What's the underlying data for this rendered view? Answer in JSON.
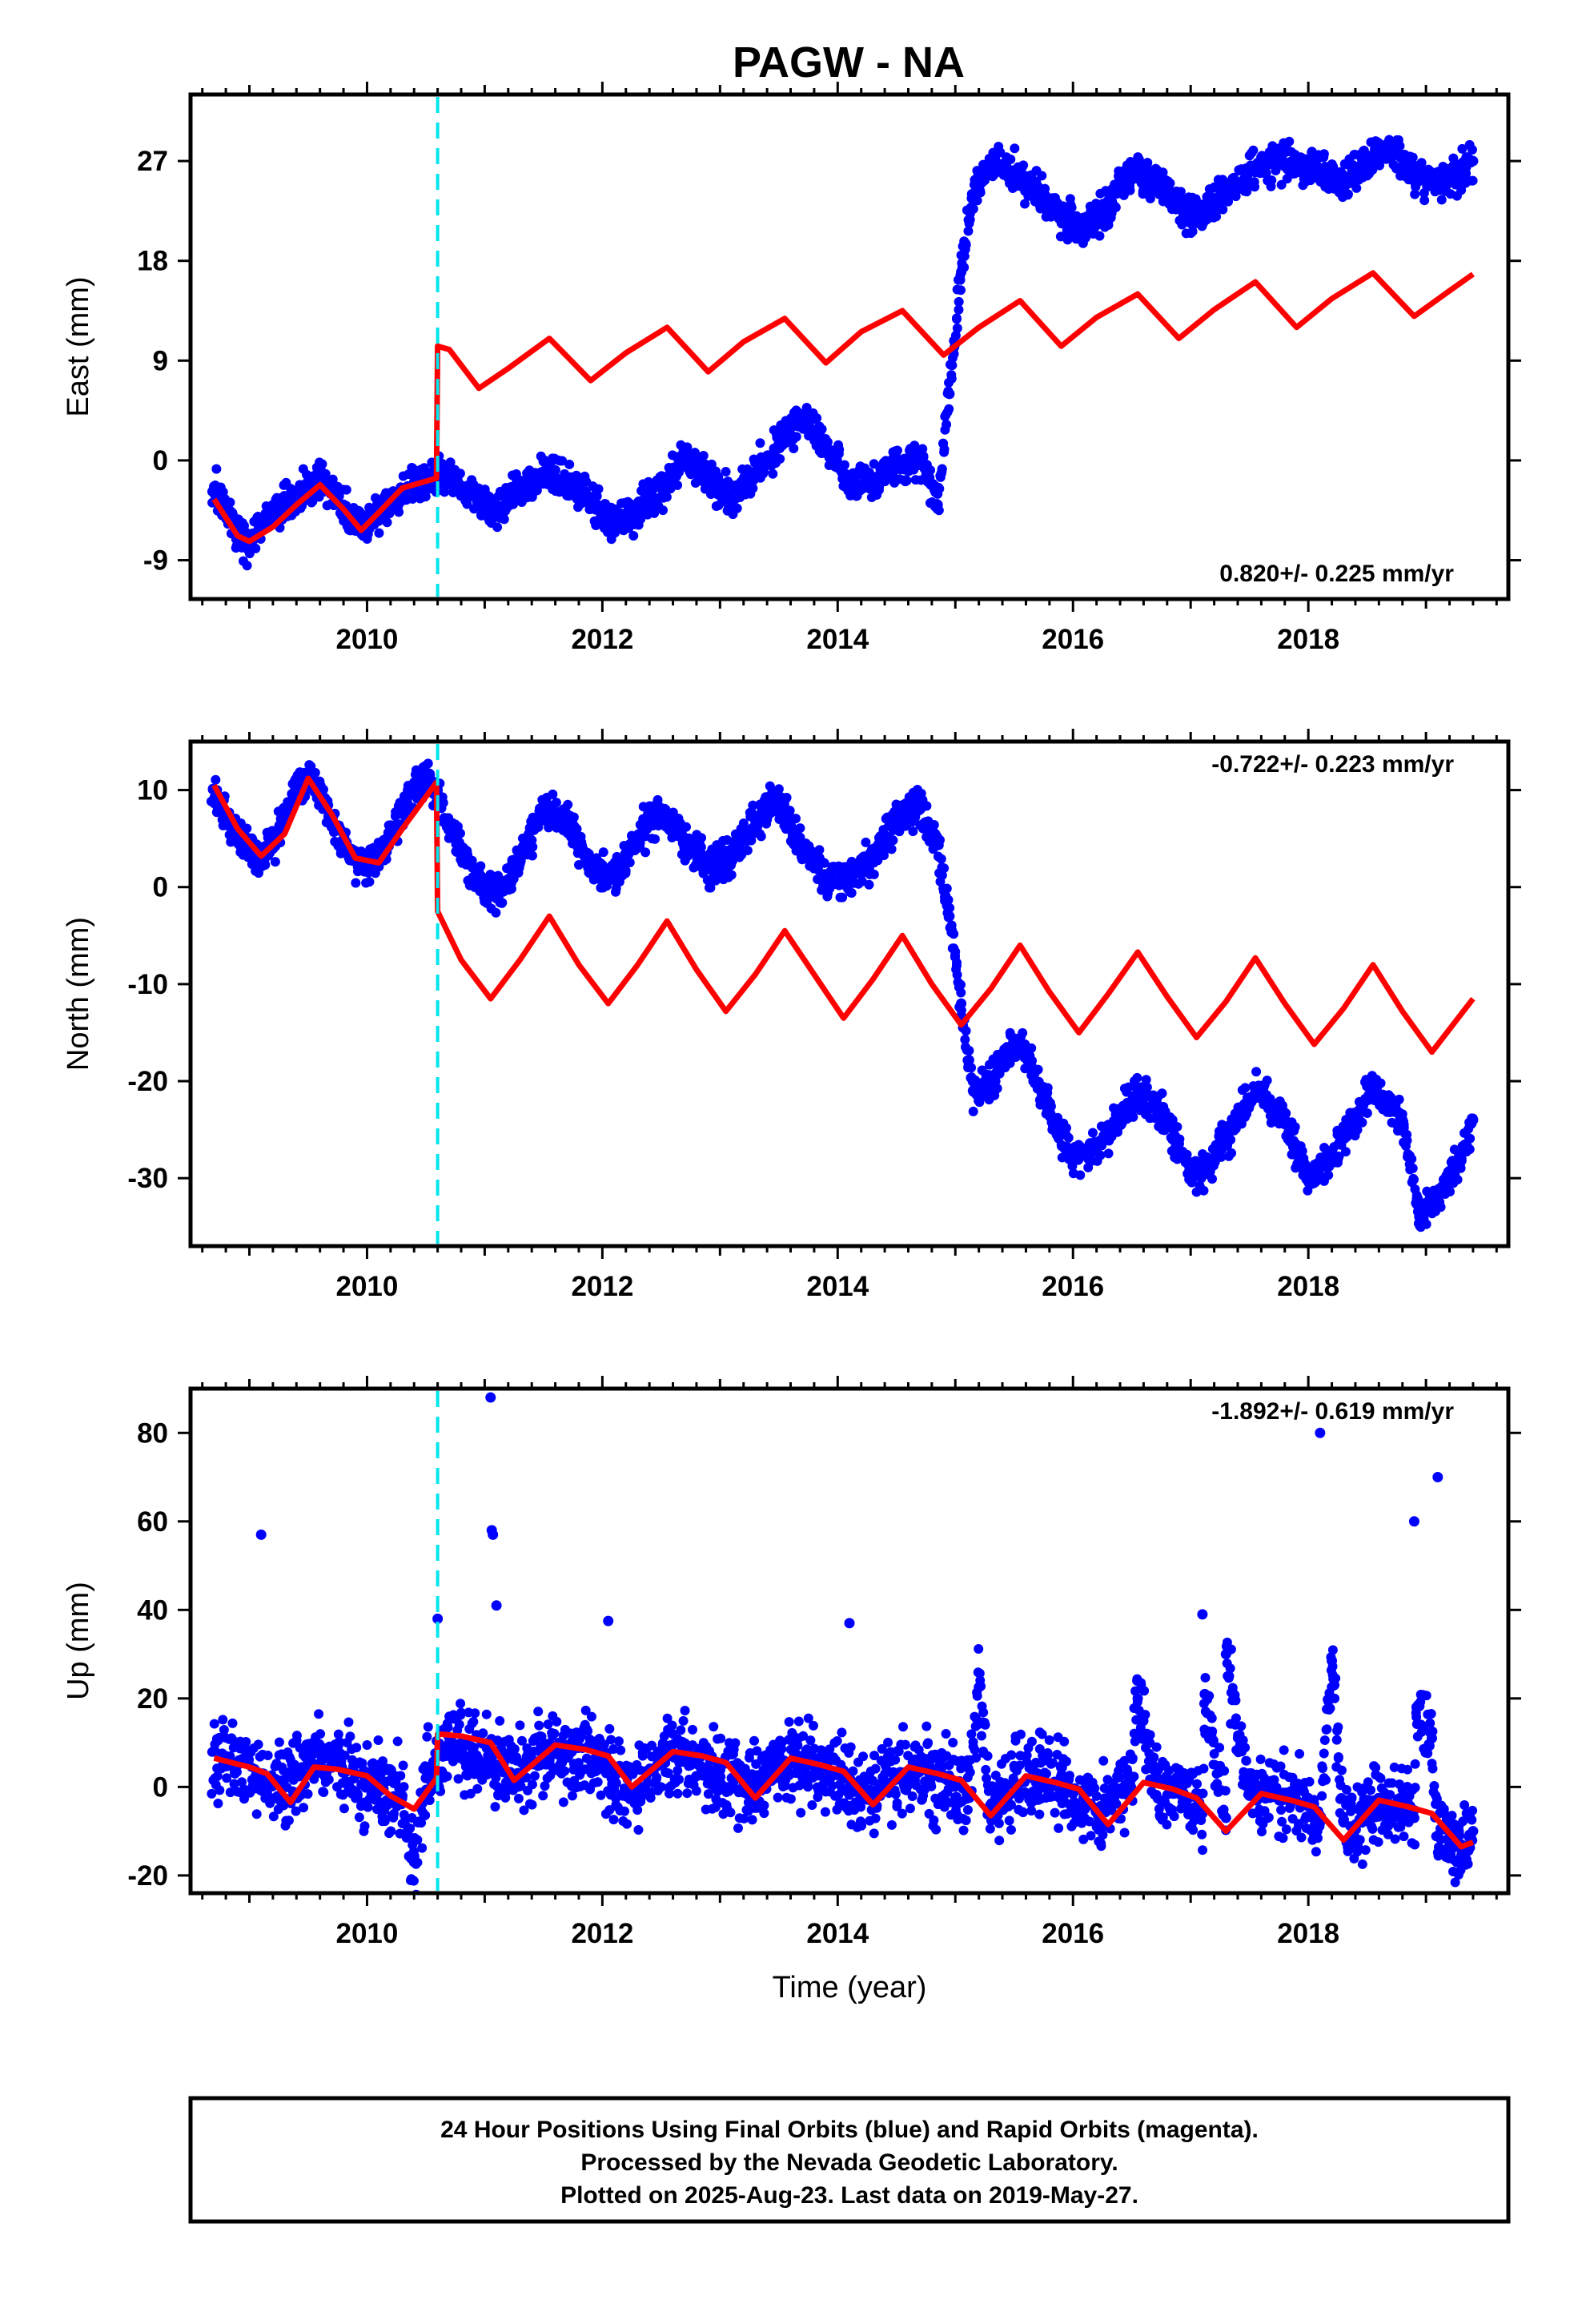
{
  "title": "PAGW - NA",
  "chart_data": [
    {
      "type": "scatter",
      "ylabel": "East (mm)",
      "xlabel": "",
      "xlim": [
        2008.5,
        2019.7
      ],
      "ylim": [
        -12.5,
        33
      ],
      "xticks": [
        2010,
        2012,
        2014,
        2016,
        2018
      ],
      "yticks": [
        -9,
        0,
        9,
        18,
        27
      ],
      "rate_text": "0.820+/- 0.225 mm/yr",
      "rate_position": "bottom-right",
      "step_epoch": 2010.6,
      "series": [
        {
          "role": "observations",
          "color": "#0000ff",
          "x": [
            2008.7,
            2008.8,
            2008.9,
            2009.0,
            2009.1,
            2009.2,
            2009.3,
            2009.4,
            2009.5,
            2009.6,
            2009.7,
            2009.8,
            2009.9,
            2010.0,
            2010.1,
            2010.2,
            2010.3,
            2010.4,
            2010.5,
            2010.6,
            2010.7,
            2010.9,
            2011.1,
            2011.3,
            2011.5,
            2011.7,
            2011.9,
            2012.1,
            2012.3,
            2012.5,
            2012.7,
            2012.9,
            2013.1,
            2013.3,
            2013.5,
            2013.7,
            2013.9,
            2014.1,
            2014.3,
            2014.5,
            2014.7,
            2014.85,
            2014.95,
            2015.05,
            2015.15,
            2015.3,
            2015.5,
            2015.7,
            2015.9,
            2016.1,
            2016.3,
            2016.5,
            2016.7,
            2016.9,
            2017.1,
            2017.3,
            2017.5,
            2017.7,
            2017.9,
            2018.1,
            2018.3,
            2018.5,
            2018.7,
            2018.9,
            2019.1,
            2019.3,
            2019.4
          ],
          "y": [
            -2.5,
            -4.5,
            -6.5,
            -7.5,
            -5.5,
            -5,
            -4,
            -3.5,
            -2.5,
            -1.5,
            -2.5,
            -4,
            -5.5,
            -6,
            -4.5,
            -3.5,
            -3,
            -2.5,
            -2,
            -1,
            -1.5,
            -3,
            -4.5,
            -2.5,
            -1,
            -2,
            -3.5,
            -6,
            -4.5,
            -2.5,
            0.5,
            -1.5,
            -3.5,
            -1,
            1.5,
            4,
            1,
            -2,
            -1.5,
            -0.5,
            0.5,
            -4,
            6,
            17,
            24,
            27,
            26,
            24,
            22,
            21,
            23,
            26,
            25,
            23,
            22,
            24,
            26,
            27,
            27,
            26,
            25,
            27,
            28,
            26,
            25,
            26,
            27
          ]
        },
        {
          "role": "model",
          "color": "#ff0000",
          "x": [
            2008.7,
            2008.9,
            2009.0,
            2009.2,
            2009.4,
            2009.6,
            2009.8,
            2009.95,
            2010.1,
            2010.3,
            2010.59,
            2010.6,
            2010.7,
            2010.95,
            2011.2,
            2011.55,
            2011.9,
            2012.2,
            2012.55,
            2012.9,
            2013.2,
            2013.55,
            2013.9,
            2014.2,
            2014.55,
            2014.9,
            2015.2,
            2015.55,
            2015.9,
            2016.2,
            2016.55,
            2016.9,
            2017.2,
            2017.55,
            2017.9,
            2018.2,
            2018.55,
            2018.9,
            2019.2,
            2019.4
          ],
          "y": [
            -3.5,
            -6.8,
            -7.3,
            -6,
            -4,
            -2.2,
            -4.4,
            -6.3,
            -4.7,
            -2.5,
            -1.6,
            10.3,
            10,
            6.5,
            8.3,
            11,
            7.2,
            9.7,
            12,
            8,
            10.7,
            12.8,
            8.8,
            11.6,
            13.5,
            9.5,
            12,
            14.4,
            10.3,
            12.9,
            15,
            11,
            13.6,
            16.1,
            12,
            14.6,
            16.9,
            13,
            15.3,
            16.8
          ]
        }
      ]
    },
    {
      "type": "scatter",
      "ylabel": "North (mm)",
      "xlabel": "",
      "xlim": [
        2008.5,
        2019.7
      ],
      "ylim": [
        -37,
        15
      ],
      "xticks": [
        2010,
        2012,
        2014,
        2016,
        2018
      ],
      "yticks": [
        -30,
        -20,
        -10,
        0,
        10
      ],
      "rate_text": "-0.722+/- 0.223 mm/yr",
      "rate_position": "top-right",
      "step_epoch": 2010.6,
      "series": [
        {
          "role": "observations",
          "color": "#0000ff",
          "x": [
            2008.7,
            2008.8,
            2008.9,
            2009.0,
            2009.1,
            2009.2,
            2009.3,
            2009.4,
            2009.5,
            2009.6,
            2009.7,
            2009.8,
            2009.9,
            2010.0,
            2010.1,
            2010.2,
            2010.3,
            2010.4,
            2010.5,
            2010.6,
            2010.7,
            2010.9,
            2011.1,
            2011.3,
            2011.5,
            2011.7,
            2011.9,
            2012.1,
            2012.3,
            2012.5,
            2012.7,
            2012.9,
            2013.1,
            2013.3,
            2013.5,
            2013.7,
            2013.9,
            2014.1,
            2014.3,
            2014.5,
            2014.7,
            2014.85,
            2014.95,
            2015.05,
            2015.15,
            2015.3,
            2015.55,
            2015.8,
            2016.0,
            2016.2,
            2016.55,
            2016.8,
            2017.0,
            2017.2,
            2017.55,
            2017.8,
            2018.0,
            2018.2,
            2018.55,
            2018.8,
            2018.95,
            2019.1,
            2019.3,
            2019.4
          ],
          "y": [
            10,
            7.5,
            5,
            3.5,
            3,
            4.5,
            7,
            10,
            11.5,
            10,
            7,
            4.5,
            3,
            2.5,
            3.5,
            5.5,
            8,
            10.5,
            11.5,
            10,
            6,
            1,
            -1,
            3,
            8,
            7,
            2,
            1,
            5,
            8,
            5,
            2,
            3,
            7,
            9,
            4,
            1,
            1,
            3,
            7,
            8,
            5,
            -3,
            -12,
            -21,
            -20,
            -16,
            -23,
            -28,
            -27,
            -21,
            -24,
            -30,
            -28,
            -21,
            -24,
            -30,
            -28,
            -21,
            -24,
            -34,
            -32,
            -28,
            -24
          ]
        },
        {
          "role": "model",
          "color": "#ff0000",
          "x": [
            2008.7,
            2008.9,
            2009.1,
            2009.3,
            2009.5,
            2009.7,
            2009.9,
            2010.1,
            2010.3,
            2010.59,
            2010.6,
            2010.8,
            2011.05,
            2011.3,
            2011.55,
            2011.8,
            2012.05,
            2012.3,
            2012.55,
            2012.8,
            2013.05,
            2013.3,
            2013.55,
            2013.8,
            2014.05,
            2014.3,
            2014.55,
            2014.8,
            2015.05,
            2015.3,
            2015.55,
            2015.8,
            2016.05,
            2016.3,
            2016.55,
            2016.8,
            2017.05,
            2017.3,
            2017.55,
            2017.8,
            2018.05,
            2018.3,
            2018.55,
            2018.8,
            2019.05,
            2019.4
          ],
          "y": [
            10.5,
            6,
            3.2,
            5.5,
            11.2,
            7.5,
            3,
            2.5,
            6,
            10.8,
            -2.5,
            -7.5,
            -11.5,
            -7.5,
            -3,
            -8,
            -12,
            -8,
            -3.5,
            -8.5,
            -12.8,
            -9,
            -4.5,
            -9,
            -13.5,
            -9.5,
            -5,
            -10,
            -14.2,
            -10.5,
            -6,
            -10.8,
            -15,
            -11,
            -6.7,
            -11.3,
            -15.5,
            -11.8,
            -7.3,
            -12,
            -16.2,
            -12.5,
            -8,
            -12.8,
            -17,
            -11.5
          ]
        }
      ]
    },
    {
      "type": "scatter",
      "ylabel": "Up (mm)",
      "xlabel": "Time (year)",
      "xlim": [
        2008.5,
        2019.7
      ],
      "ylim": [
        -24,
        90
      ],
      "xticks": [
        2010,
        2012,
        2014,
        2016,
        2018
      ],
      "yticks": [
        -20,
        0,
        20,
        40,
        60,
        80
      ],
      "rate_text": "-1.892+/- 0.619 mm/yr",
      "rate_position": "top-right",
      "step_epoch": 2010.6,
      "series": [
        {
          "role": "observations",
          "color": "#0000ff",
          "x": [
            2008.7,
            2008.9,
            2009.1,
            2009.3,
            2009.5,
            2009.7,
            2009.9,
            2010.1,
            2010.3,
            2010.5,
            2010.7,
            2010.9,
            2011.1,
            2011.3,
            2011.5,
            2011.7,
            2011.9,
            2012.1,
            2012.3,
            2012.5,
            2012.7,
            2012.9,
            2013.1,
            2013.3,
            2013.5,
            2013.7,
            2013.9,
            2014.1,
            2014.3,
            2014.5,
            2014.7,
            2014.9,
            2015.1,
            2015.3,
            2015.5,
            2015.7,
            2015.9,
            2016.1,
            2016.3,
            2016.5,
            2016.7,
            2016.9,
            2017.1,
            2017.3,
            2017.5,
            2017.7,
            2017.9,
            2018.1,
            2018.3,
            2018.5,
            2018.7,
            2018.9,
            2019.1,
            2019.3,
            2019.4,
            2009.1,
            2010.6,
            2011.05,
            2011.06,
            2011.07,
            2011.1,
            2012.05,
            2014.1,
            2015.2,
            2016.55,
            2017.1,
            2017.12,
            2017.3,
            2018.1,
            2018.2,
            2018.9,
            2018.92,
            2019.1,
            2019.05,
            2010.4
          ],
          "y": [
            8,
            5,
            2,
            0,
            5,
            6,
            3,
            0,
            -2,
            2,
            10,
            8,
            5,
            3,
            8,
            7,
            6,
            2,
            0,
            6,
            7,
            4,
            2,
            -1,
            5,
            6,
            3,
            0,
            -2,
            3,
            4,
            2,
            -2,
            -4,
            1,
            3,
            0,
            -5,
            -4,
            2,
            1,
            0,
            -6,
            -7,
            -2,
            0,
            -3,
            -8,
            -8,
            -5,
            -4,
            -7,
            -11,
            -13,
            -10,
            57,
            38,
            88,
            58,
            57,
            41,
            37.5,
            37,
            22.5,
            20,
            39,
            21,
            30,
            80,
            28.5,
            60,
            18,
            70,
            11,
            -17
          ]
        },
        {
          "role": "model",
          "color": "#ff0000",
          "x": [
            2008.7,
            2008.85,
            2009.0,
            2009.15,
            2009.35,
            2009.55,
            2009.75,
            2010.0,
            2010.2,
            2010.4,
            2010.59,
            2010.6,
            2010.8,
            2011.05,
            2011.25,
            2011.6,
            2011.85,
            2012.05,
            2012.25,
            2012.6,
            2012.85,
            2013.05,
            2013.3,
            2013.6,
            2013.85,
            2014.05,
            2014.3,
            2014.6,
            2014.85,
            2015.05,
            2015.3,
            2015.6,
            2015.85,
            2016.05,
            2016.3,
            2016.6,
            2016.85,
            2017.05,
            2017.3,
            2017.6,
            2017.85,
            2018.05,
            2018.3,
            2018.6,
            2018.85,
            2019.05,
            2019.3,
            2019.4
          ],
          "y": [
            6.5,
            5.5,
            4.5,
            3,
            -3.5,
            4.5,
            4,
            2.5,
            -2,
            -5,
            2,
            12,
            11.5,
            10,
            1.5,
            9.5,
            8.5,
            7,
            0,
            8,
            7,
            5.5,
            -2.5,
            6.5,
            5,
            3.5,
            -4,
            4.5,
            3,
            1.5,
            -6.5,
            2.5,
            1,
            -0.5,
            -8.5,
            1,
            -0.5,
            -2.5,
            -10,
            -1.5,
            -3,
            -4.5,
            -12,
            -3,
            -4.5,
            -6,
            -13.5,
            -12.5
          ]
        }
      ]
    }
  ],
  "footer": {
    "lines": [
      "24 Hour Positions Using Final Orbits (blue) and Rapid Orbits (magenta).",
      "Processed by the Nevada Geodetic Laboratory.",
      "Plotted on 2025-Aug-23. Last data on 2019-May-27."
    ]
  }
}
